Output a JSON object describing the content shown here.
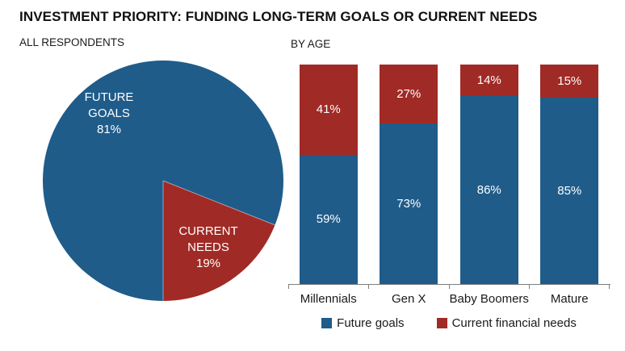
{
  "page": {
    "title": "INVESTMENT PRIORITY: FUNDING LONG-TERM GOALS OR CURRENT NEEDS"
  },
  "colors": {
    "future_goals": "#1F5C8A",
    "current_needs": "#A02A25",
    "axis": "#7F7F7F",
    "text": "#1A1A1A",
    "label_on_color": "#FFFFFF",
    "background": "#FFFFFF"
  },
  "chart_data": [
    {
      "type": "pie",
      "title": "ALL RESPONDENTS",
      "start_angle_deg": 180,
      "direction": "clockwise",
      "slices": [
        {
          "name": "Future goals",
          "value_pct": 81,
          "color_key": "future_goals",
          "label_lines": [
            "FUTURE",
            "GOALS",
            "81%"
          ]
        },
        {
          "name": "Current financial needs",
          "value_pct": 19,
          "color_key": "current_needs",
          "label_lines": [
            "CURRENT",
            "NEEDS",
            "19%"
          ]
        }
      ]
    },
    {
      "type": "bar",
      "stacked": true,
      "title": "BY AGE",
      "categories": [
        "Millennials",
        "Gen X",
        "Baby Boomers",
        "Mature"
      ],
      "series": [
        {
          "name": "Future goals",
          "color_key": "future_goals",
          "values": [
            59,
            73,
            86,
            85
          ],
          "labels": [
            "59%",
            "73%",
            "86%",
            "85%"
          ]
        },
        {
          "name": "Current financial needs",
          "color_key": "current_needs",
          "values": [
            41,
            27,
            14,
            15
          ],
          "labels": [
            "41%",
            "27%",
            "14%",
            "15%"
          ]
        }
      ],
      "ylim": [
        0,
        100
      ],
      "grid": false,
      "legend_position": "bottom",
      "legend": [
        {
          "label": "Future goals",
          "color_key": "future_goals"
        },
        {
          "label": "Current financial needs",
          "color_key": "current_needs"
        }
      ]
    }
  ]
}
